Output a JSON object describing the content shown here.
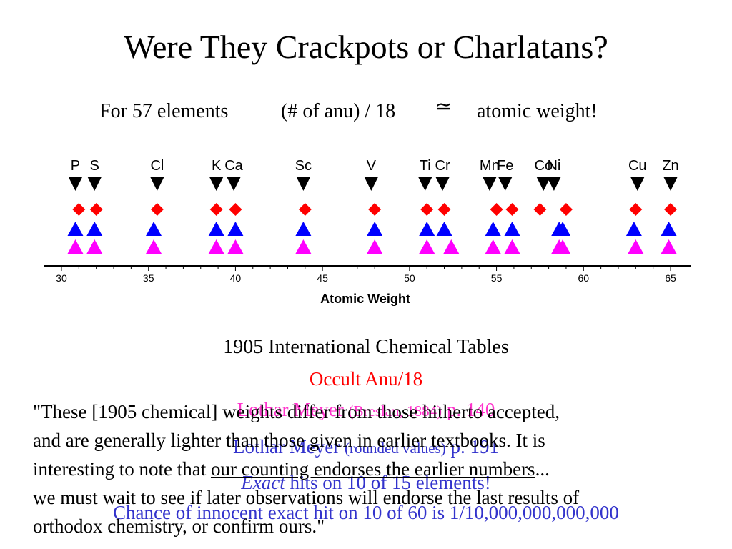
{
  "slide": {
    "title": "Were They Crackpots or Charlatans?",
    "formula": {
      "part1": "For 57 elements",
      "part2": "(# of anu) / 18",
      "symbol": "≃",
      "part3": "atomic weight!"
    }
  },
  "legend": {
    "source": "1905 International Chemical Tables",
    "occult": "Occult Anu/18",
    "meyer1_main": "Lothar Meyer",
    "meyer1_small": "(Breslau, 1884)",
    "meyer1_page": "p. 140",
    "meyer2_main": "Lothar Meyer",
    "meyer2_small": "(rounded values)",
    "meyer2_page": "p. 191",
    "exact_italic": "Exact",
    "exact_rest": "hits on 10 of 15 elements!",
    "chance": "Chance of innocent exact hit on 10 of 60 is 1/10,000,000,000,000"
  },
  "quote": {
    "line1": "\"These [1905 chemical] weights differ from those hitherto accepted,",
    "line2": "and are generally lighter than those given in earlier textbooks. It is",
    "line3_pre": "interesting to note that ",
    "line3_ul": "our counting endorses the earlier numbers",
    "line3_post": "...",
    "line4": "we must wait to see if later observations will endorse the last results of",
    "line5": "orthodox chemistry, or confirm ours.\""
  },
  "chart_data": {
    "type": "scatter",
    "xlabel": "Atomic Weight",
    "xlim": [
      29.5,
      66
    ],
    "xticks": [
      30,
      35,
      40,
      45,
      50,
      55,
      60,
      65
    ],
    "colors": {
      "top": "#000000",
      "red": "#ff0000",
      "blue": "#0000ff",
      "magenta": "#ff00ff"
    },
    "elements": [
      {
        "symbol": "P",
        "x": 30.8
      },
      {
        "symbol": "S",
        "x": 31.9
      },
      {
        "symbol": "Cl",
        "x": 35.5
      },
      {
        "symbol": "K",
        "x": 38.9
      },
      {
        "symbol": "Ca",
        "x": 39.9
      },
      {
        "symbol": "Sc",
        "x": 43.9
      },
      {
        "symbol": "V",
        "x": 47.8
      },
      {
        "symbol": "Ti",
        "x": 50.9
      },
      {
        "symbol": "Cr",
        "x": 51.9
      },
      {
        "symbol": "Mn",
        "x": 54.6
      },
      {
        "symbol": "Fe",
        "x": 55.5
      },
      {
        "symbol": "Co",
        "x": 57.7
      },
      {
        "symbol": "Ni",
        "x": 58.3
      },
      {
        "symbol": "Cu",
        "x": 63.1
      },
      {
        "symbol": "Zn",
        "x": 65.0
      }
    ],
    "series": [
      {
        "marker": "triangle-down",
        "color": "#000000",
        "x": [
          30.8,
          31.9,
          35.5,
          38.9,
          39.9,
          43.9,
          47.8,
          50.9,
          51.9,
          54.6,
          55.5,
          57.7,
          58.3,
          63.1,
          65.0
        ]
      },
      {
        "marker": "diamond",
        "color": "#ff0000",
        "x": [
          31.0,
          32.0,
          35.5,
          38.9,
          40.0,
          44.0,
          48.0,
          51.0,
          52.0,
          55.0,
          55.9,
          57.5,
          59.0,
          63.0,
          65.0
        ]
      },
      {
        "marker": "triangle-up",
        "color": "#0000ff",
        "x": [
          30.8,
          31.9,
          35.3,
          38.9,
          40.0,
          43.9,
          48.0,
          51.0,
          52.0,
          54.8,
          55.9,
          58.6,
          58.8,
          62.9,
          64.9
        ]
      },
      {
        "marker": "triangle-up",
        "color": "#ff00ff",
        "x": [
          30.8,
          31.9,
          35.3,
          38.9,
          40.0,
          43.9,
          48.0,
          51.0,
          52.4,
          54.8,
          55.9,
          58.6,
          58.8,
          63.0,
          64.9
        ]
      }
    ]
  }
}
